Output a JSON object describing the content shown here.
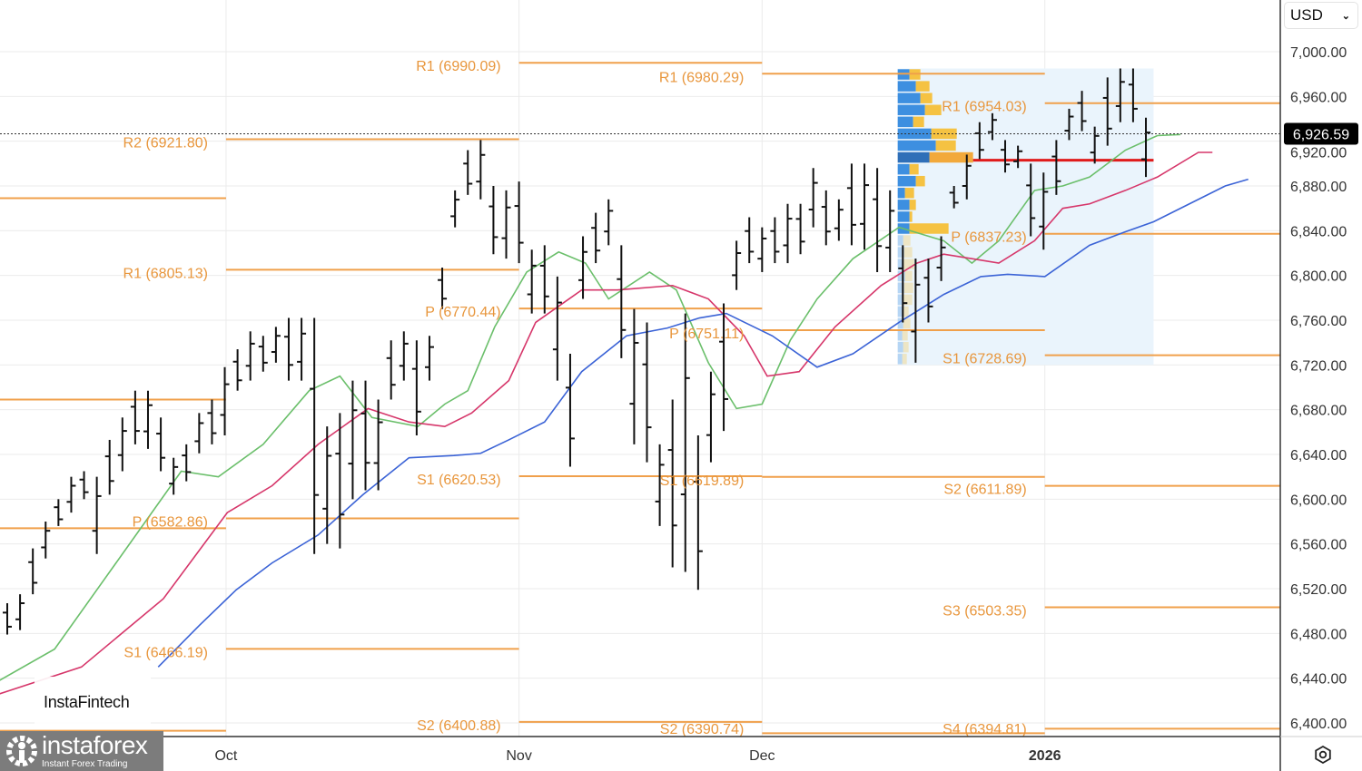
{
  "currency_select": {
    "value": "USD"
  },
  "current_price": {
    "value": 6926.59,
    "label": "6,926.59"
  },
  "x_axis": {
    "labels": [
      {
        "text": "Oct",
        "bold": false,
        "bar": 17.1
      },
      {
        "text": "Nov",
        "bold": false,
        "bar": 40.0
      },
      {
        "text": "Dec",
        "bold": false,
        "bar": 59.0
      },
      {
        "text": "2026",
        "bold": true,
        "bar": 81.1
      }
    ]
  },
  "watermarks": {
    "fintech": "InstaFintech",
    "brand": "instaforex",
    "brand_sub": "Instant Forex Trading"
  },
  "colors": {
    "pivot": "#f0a04b",
    "pivot_label": "#e8963c",
    "ma_fast": "#6bbf6b",
    "ma_mid": "#d6366a",
    "ma_slow": "#3b63d6",
    "poc": "#e01b1b",
    "vp_buy": "#3d8fe0",
    "vp_sell": "#f5c242",
    "vp_bg": "#eaf4fc"
  },
  "chart_data": {
    "type": "ohlc",
    "title": "",
    "ylim": [
      6390,
      7020
    ],
    "y_ticks": [
      "7,000.00",
      "6,960.00",
      "6,920.00",
      "6,880.00",
      "6,840.00",
      "6,800.00",
      "6,760.00",
      "6,720.00",
      "6,680.00",
      "6,640.00",
      "6,600.00",
      "6,560.00",
      "6,520.00",
      "6,480.00",
      "6,440.00",
      "6,400.00"
    ],
    "y_tick_values": [
      7000,
      6960,
      6920,
      6880,
      6840,
      6800,
      6760,
      6720,
      6680,
      6640,
      6600,
      6560,
      6520,
      6480,
      6440,
      6400
    ],
    "grid": true,
    "bars_high_low": [
      [
        6507,
        6479
      ],
      [
        6515,
        6483
      ],
      [
        6556,
        6515
      ],
      [
        6580,
        6547
      ],
      [
        6600,
        6576
      ],
      [
        6620,
        6588
      ],
      [
        6625,
        6600
      ],
      [
        6620,
        6551
      ],
      [
        6653,
        6604
      ],
      [
        6673,
        6625
      ],
      [
        6697,
        6649
      ],
      [
        6697,
        6645
      ],
      [
        6673,
        6625
      ],
      [
        6637,
        6604
      ],
      [
        6649,
        6616
      ],
      [
        6677,
        6641
      ],
      [
        6689,
        6649
      ],
      [
        6718,
        6657
      ],
      [
        6734,
        6697
      ],
      [
        6750,
        6706
      ],
      [
        6746,
        6714
      ],
      [
        6754,
        6722
      ],
      [
        6762,
        6706
      ],
      [
        6762,
        6706
      ],
      [
        6762,
        6551
      ],
      [
        6665,
        6560
      ],
      [
        6677,
        6556
      ],
      [
        6706,
        6600
      ],
      [
        6706,
        6608
      ],
      [
        6689,
        6608
      ],
      [
        6742,
        6689
      ],
      [
        6750,
        6706
      ],
      [
        6742,
        6657
      ],
      [
        6746,
        6706
      ],
      [
        6807,
        6770
      ],
      [
        6876,
        6843
      ],
      [
        6912,
        6872
      ],
      [
        6921,
        6868
      ],
      [
        6880,
        6819
      ],
      [
        6876,
        6815
      ],
      [
        6884,
        6811
      ],
      [
        6823,
        6766
      ],
      [
        6827,
        6766
      ],
      [
        6799,
        6706
      ],
      [
        6730,
        6629
      ],
      [
        6835,
        6779
      ],
      [
        6856,
        6811
      ],
      [
        6868,
        6827
      ],
      [
        6827,
        6726
      ],
      [
        6770,
        6649
      ],
      [
        6758,
        6633
      ],
      [
        6649,
        6576
      ],
      [
        6689,
        6539
      ],
      [
        6766,
        6535
      ],
      [
        6657,
        6519
      ],
      [
        6714,
        6633
      ],
      [
        6775,
        6661
      ],
      [
        6831,
        6787
      ],
      [
        6852,
        6811
      ],
      [
        6843,
        6803
      ],
      [
        6852,
        6811
      ],
      [
        6864,
        6811
      ],
      [
        6864,
        6819
      ],
      [
        6896,
        6843
      ],
      [
        6876,
        6827
      ],
      [
        6868,
        6831
      ],
      [
        6900,
        6827
      ],
      [
        6900,
        6823
      ],
      [
        6896,
        6803
      ],
      [
        6876,
        6803
      ],
      [
        6827,
        6758
      ],
      [
        6815,
        6722
      ],
      [
        6815,
        6758
      ],
      [
        6835,
        6795
      ],
      [
        6880,
        6860
      ],
      [
        6908,
        6868
      ],
      [
        6937,
        6904
      ],
      [
        6945,
        6921
      ],
      [
        6921,
        6892
      ],
      [
        6916,
        6896
      ],
      [
        6900,
        6835
      ],
      [
        6892,
        6823
      ],
      [
        6921,
        6872
      ],
      [
        6949,
        6921
      ],
      [
        6965,
        6929
      ],
      [
        6933,
        6900
      ],
      [
        6977,
        6916
      ],
      [
        6985,
        6937
      ],
      [
        6985,
        6937
      ],
      [
        6941,
        6888
      ]
    ],
    "moving_averages": [
      {
        "color": "#6bbf6b",
        "points": [
          [
            -0.6,
            6438
          ],
          [
            3.7,
            6466
          ],
          [
            9.0,
            6551
          ],
          [
            13.6,
            6625
          ],
          [
            16.5,
            6620
          ],
          [
            20.0,
            6649
          ],
          [
            23.6,
            6697
          ],
          [
            26.0,
            6710
          ],
          [
            28.5,
            6673
          ],
          [
            32.1,
            6665
          ],
          [
            34.2,
            6685
          ],
          [
            36.0,
            6697
          ],
          [
            38.1,
            6754
          ],
          [
            40.6,
            6803
          ],
          [
            43.1,
            6821
          ],
          [
            45.2,
            6811
          ],
          [
            47.0,
            6779
          ],
          [
            50.2,
            6803
          ],
          [
            52.3,
            6787
          ],
          [
            54.8,
            6722
          ],
          [
            57.0,
            6681
          ],
          [
            59.0,
            6685
          ],
          [
            61.2,
            6742
          ],
          [
            63.3,
            6779
          ],
          [
            66.1,
            6815
          ],
          [
            69.7,
            6843
          ],
          [
            73.2,
            6831
          ],
          [
            75.4,
            6811
          ],
          [
            77.5,
            6831
          ],
          [
            80.3,
            6876
          ],
          [
            82.5,
            6880
          ],
          [
            84.6,
            6888
          ],
          [
            87.4,
            6912
          ],
          [
            89.9,
            6925
          ],
          [
            91.7,
            6926
          ]
        ]
      },
      {
        "color": "#d6366a",
        "points": [
          [
            -0.6,
            6426
          ],
          [
            5.8,
            6450
          ],
          [
            12.2,
            6511
          ],
          [
            17.2,
            6588
          ],
          [
            20.7,
            6612
          ],
          [
            24.3,
            6649
          ],
          [
            28.2,
            6681
          ],
          [
            31.4,
            6669
          ],
          [
            34.2,
            6665
          ],
          [
            36.3,
            6677
          ],
          [
            39.2,
            6706
          ],
          [
            41.3,
            6758
          ],
          [
            44.9,
            6787
          ],
          [
            47.7,
            6787
          ],
          [
            52.0,
            6791
          ],
          [
            54.8,
            6779
          ],
          [
            57.6,
            6746
          ],
          [
            59.4,
            6710
          ],
          [
            61.9,
            6714
          ],
          [
            64.7,
            6754
          ],
          [
            68.3,
            6791
          ],
          [
            71.1,
            6811
          ],
          [
            73.2,
            6819
          ],
          [
            75.4,
            6815
          ],
          [
            77.5,
            6811
          ],
          [
            80.3,
            6831
          ],
          [
            82.5,
            6860
          ],
          [
            84.6,
            6864
          ],
          [
            87.4,
            6876
          ],
          [
            89.9,
            6888
          ],
          [
            93.1,
            6910
          ],
          [
            94.2,
            6910
          ]
        ]
      },
      {
        "color": "#3b63d6",
        "points": [
          [
            11.8,
            6450
          ],
          [
            15.0,
            6487
          ],
          [
            17.9,
            6519
          ],
          [
            20.7,
            6543
          ],
          [
            24.3,
            6568
          ],
          [
            27.8,
            6604
          ],
          [
            31.4,
            6637
          ],
          [
            34.9,
            6639
          ],
          [
            37.0,
            6641
          ],
          [
            39.2,
            6653
          ],
          [
            42.0,
            6669
          ],
          [
            44.9,
            6714
          ],
          [
            48.4,
            6746
          ],
          [
            51.6,
            6753
          ],
          [
            54.1,
            6762
          ],
          [
            56.2,
            6766
          ],
          [
            59.8,
            6746
          ],
          [
            63.3,
            6718
          ],
          [
            66.1,
            6730
          ],
          [
            69.7,
            6758
          ],
          [
            73.2,
            6783
          ],
          [
            76.1,
            6799
          ],
          [
            78.2,
            6801
          ],
          [
            81.1,
            6799
          ],
          [
            84.6,
            6827
          ],
          [
            87.4,
            6839
          ],
          [
            89.6,
            6848
          ],
          [
            92.4,
            6864
          ],
          [
            95.2,
            6880
          ],
          [
            97.0,
            6886
          ]
        ]
      }
    ],
    "pivot_periods": [
      {
        "start": -0.6,
        "end": 17.1,
        "levels": [
          {
            "label": "",
            "value": 6869
          },
          {
            "label": "",
            "value": 6689
          },
          {
            "label": "",
            "value": 6574
          },
          {
            "label": "",
            "value": 6393
          }
        ]
      },
      {
        "start": 17.1,
        "end": 40.0,
        "levels": [
          {
            "label": "R2 (6921.80)",
            "value": 6921.8
          },
          {
            "label": "R1 (6805.13)",
            "value": 6805.13
          },
          {
            "label": "P (6582.86)",
            "value": 6582.86
          },
          {
            "label": "S1 (6466.19)",
            "value": 6466.19
          }
        ]
      },
      {
        "start": 40.0,
        "end": 59.0,
        "levels": [
          {
            "label": "R1 (6990.09)",
            "value": 6990.09
          },
          {
            "label": "P (6770.44)",
            "value": 6770.44
          },
          {
            "label": "S1 (6620.53)",
            "value": 6620.53
          },
          {
            "label": "S2 (6400.88)",
            "value": 6400.88
          }
        ]
      },
      {
        "start": 59.0,
        "end": 81.1,
        "levels": [
          {
            "label": "R1 (6980.29)",
            "value": 6980.29
          },
          {
            "label": "P (6751.11)",
            "value": 6751.11
          },
          {
            "label": "S1 (6619.89)",
            "value": 6619.89
          },
          {
            "label": "S2 (6390.74)",
            "value": 6390.74
          }
        ]
      },
      {
        "start": 81.1,
        "end": 100,
        "levels": [
          {
            "label": "R1 (6954.03)",
            "value": 6954.03
          },
          {
            "label": "P (6837.23)",
            "value": 6837.23
          },
          {
            "label": "S1 (6728.69)",
            "value": 6728.69
          },
          {
            "label": "S2 (6611.89)",
            "value": 6611.89
          },
          {
            "label": "S3 (6503.35)",
            "value": 6503.35
          },
          {
            "label": "S4 (6394.81)",
            "value": 6394.81
          }
        ]
      }
    ],
    "volume_profile": {
      "start": 69.6,
      "end": 89.6,
      "top": 6985,
      "bottom": 6720,
      "poc": 6903,
      "rows": [
        [
          13,
          12
        ],
        [
          20,
          15
        ],
        [
          25,
          13
        ],
        [
          30,
          18
        ],
        [
          17,
          12
        ],
        [
          37,
          28
        ],
        [
          42,
          22
        ],
        [
          35,
          48
        ],
        [
          13,
          10
        ],
        [
          20,
          10
        ],
        [
          8,
          10
        ],
        [
          13,
          7
        ],
        [
          13,
          3
        ],
        [
          13,
          43
        ],
        [
          6,
          8
        ],
        [
          7,
          9
        ],
        [
          6,
          12
        ],
        [
          8,
          8
        ],
        [
          7,
          10
        ],
        [
          6,
          10
        ],
        [
          5,
          7
        ],
        [
          6,
          8
        ],
        [
          5,
          6
        ],
        [
          6,
          6
        ],
        [
          5,
          5
        ]
      ],
      "poc_row": 7
    }
  }
}
